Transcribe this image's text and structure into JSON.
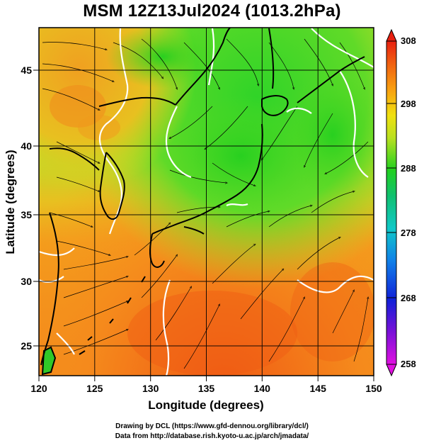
{
  "title": "MSM 12Z13Jul2024 (1013.2hPa)",
  "footer": {
    "line1": "Drawing by DCL (https://www.gfd-dennou.org/library/dcl/)",
    "line2": "Data from http://database.rish.kyoto-u.ac.jp/arch/jmadata/"
  },
  "map": {
    "xlabel": "Longitude (degrees)",
    "ylabel": "Latitude  (degrees)",
    "xlim": [
      120,
      150
    ],
    "ylim": [
      22.5,
      48
    ],
    "xticks": [
      "120",
      "125",
      "130",
      "135",
      "140",
      "145",
      "150"
    ],
    "yticks": [
      "25",
      "30",
      "35",
      "40",
      "45"
    ],
    "grid": true,
    "colorbar": {
      "ticks": [
        "308",
        "298",
        "288",
        "278",
        "268",
        "258"
      ],
      "range": [
        258,
        308
      ]
    }
  },
  "colors": {
    "orange": "#f07a18",
    "yellow": "#e6e628",
    "green": "#28d228",
    "white_contour": "#ffffff",
    "coast": "#000000"
  }
}
